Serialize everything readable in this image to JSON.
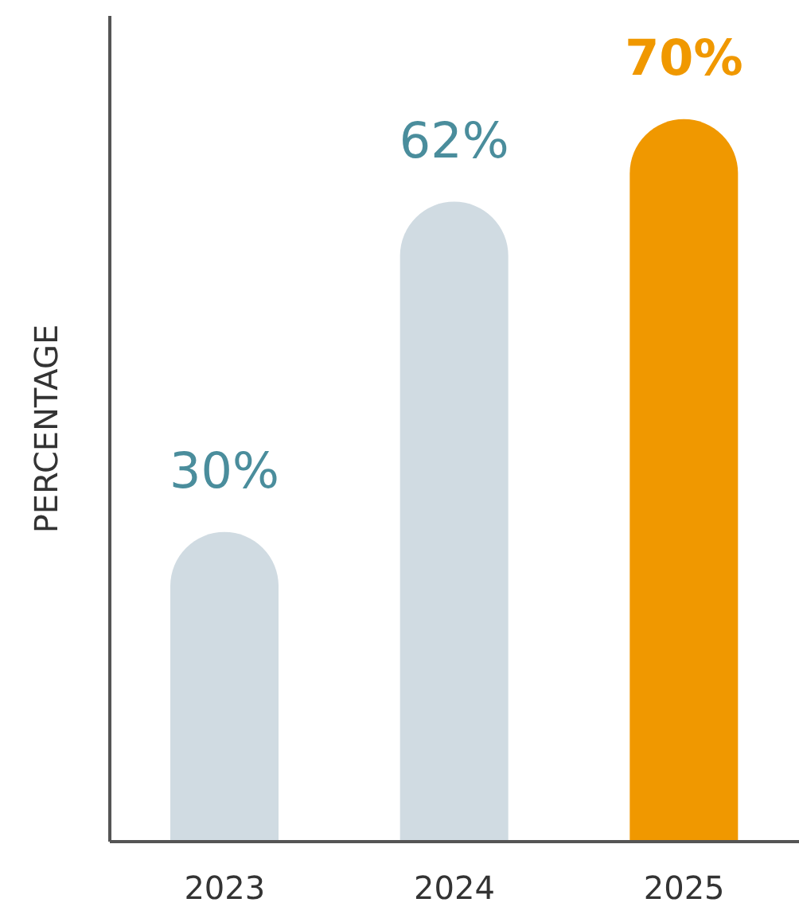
{
  "chart_data": {
    "type": "bar",
    "ylabel": "PERCENTAGE",
    "categories": [
      "2023",
      "2024",
      "2025"
    ],
    "values": [
      30,
      62,
      70
    ],
    "colors": [
      "#d0dbe2",
      "#d0dbe2",
      "#f09800"
    ],
    "value_labels": [
      "30%",
      "62%",
      "70%"
    ],
    "ylim": [
      0,
      80
    ]
  }
}
